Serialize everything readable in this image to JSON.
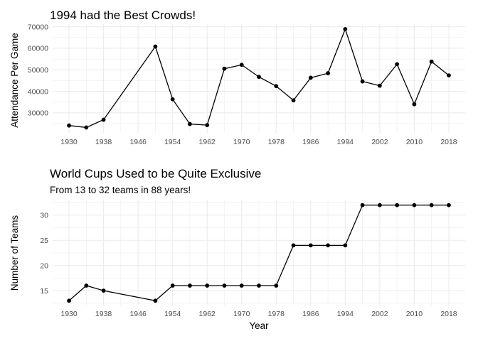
{
  "chart_data": [
    {
      "type": "line",
      "title": "1994 had the Best Crowds!",
      "subtitle": "",
      "xlabel": "",
      "ylabel": "Attendance Per Game",
      "x": [
        1930,
        1934,
        1938,
        1950,
        1954,
        1958,
        1962,
        1966,
        1970,
        1974,
        1978,
        1982,
        1986,
        1990,
        1994,
        1998,
        2002,
        2006,
        2010,
        2014,
        2018
      ],
      "values": [
        24100,
        23200,
        26800,
        60800,
        36300,
        24800,
        24300,
        50500,
        52300,
        46700,
        42400,
        35800,
        46300,
        48400,
        68900,
        44600,
        42600,
        52600,
        34000,
        53800,
        47400
      ],
      "xlim": [
        1926.2,
        2021.8
      ],
      "ylim": [
        20700,
        71200
      ],
      "xticks": [
        1930,
        1938,
        1946,
        1954,
        1962,
        1970,
        1978,
        1986,
        1994,
        2002,
        2010,
        2018
      ],
      "yticks": [
        30000,
        40000,
        50000,
        60000,
        70000
      ],
      "ytick_labels": [
        "30000",
        "40000",
        "50000",
        "60000",
        "70000"
      ],
      "grid": true,
      "legend": "none"
    },
    {
      "type": "line",
      "title": "World Cups Used to be Quite Exclusive",
      "subtitle": "From 13 to 32 teams in 88 years!",
      "xlabel": "Year",
      "ylabel": "Number of Teams",
      "x": [
        1930,
        1934,
        1938,
        1950,
        1954,
        1958,
        1962,
        1966,
        1970,
        1974,
        1978,
        1982,
        1986,
        1990,
        1994,
        1998,
        2002,
        2006,
        2010,
        2014,
        2018
      ],
      "values": [
        13,
        16,
        15,
        13,
        16,
        16,
        16,
        16,
        16,
        16,
        16,
        24,
        24,
        24,
        24,
        32,
        32,
        32,
        32,
        32,
        32
      ],
      "xlim": [
        1926.2,
        2021.8
      ],
      "ylim": [
        12.05,
        32.95
      ],
      "xticks": [
        1930,
        1938,
        1946,
        1954,
        1962,
        1970,
        1978,
        1986,
        1994,
        2002,
        2010,
        2018
      ],
      "yticks": [
        15,
        20,
        25,
        30
      ],
      "ytick_labels": [
        "15",
        "20",
        "25",
        "30"
      ],
      "grid": true,
      "legend": "none"
    }
  ]
}
